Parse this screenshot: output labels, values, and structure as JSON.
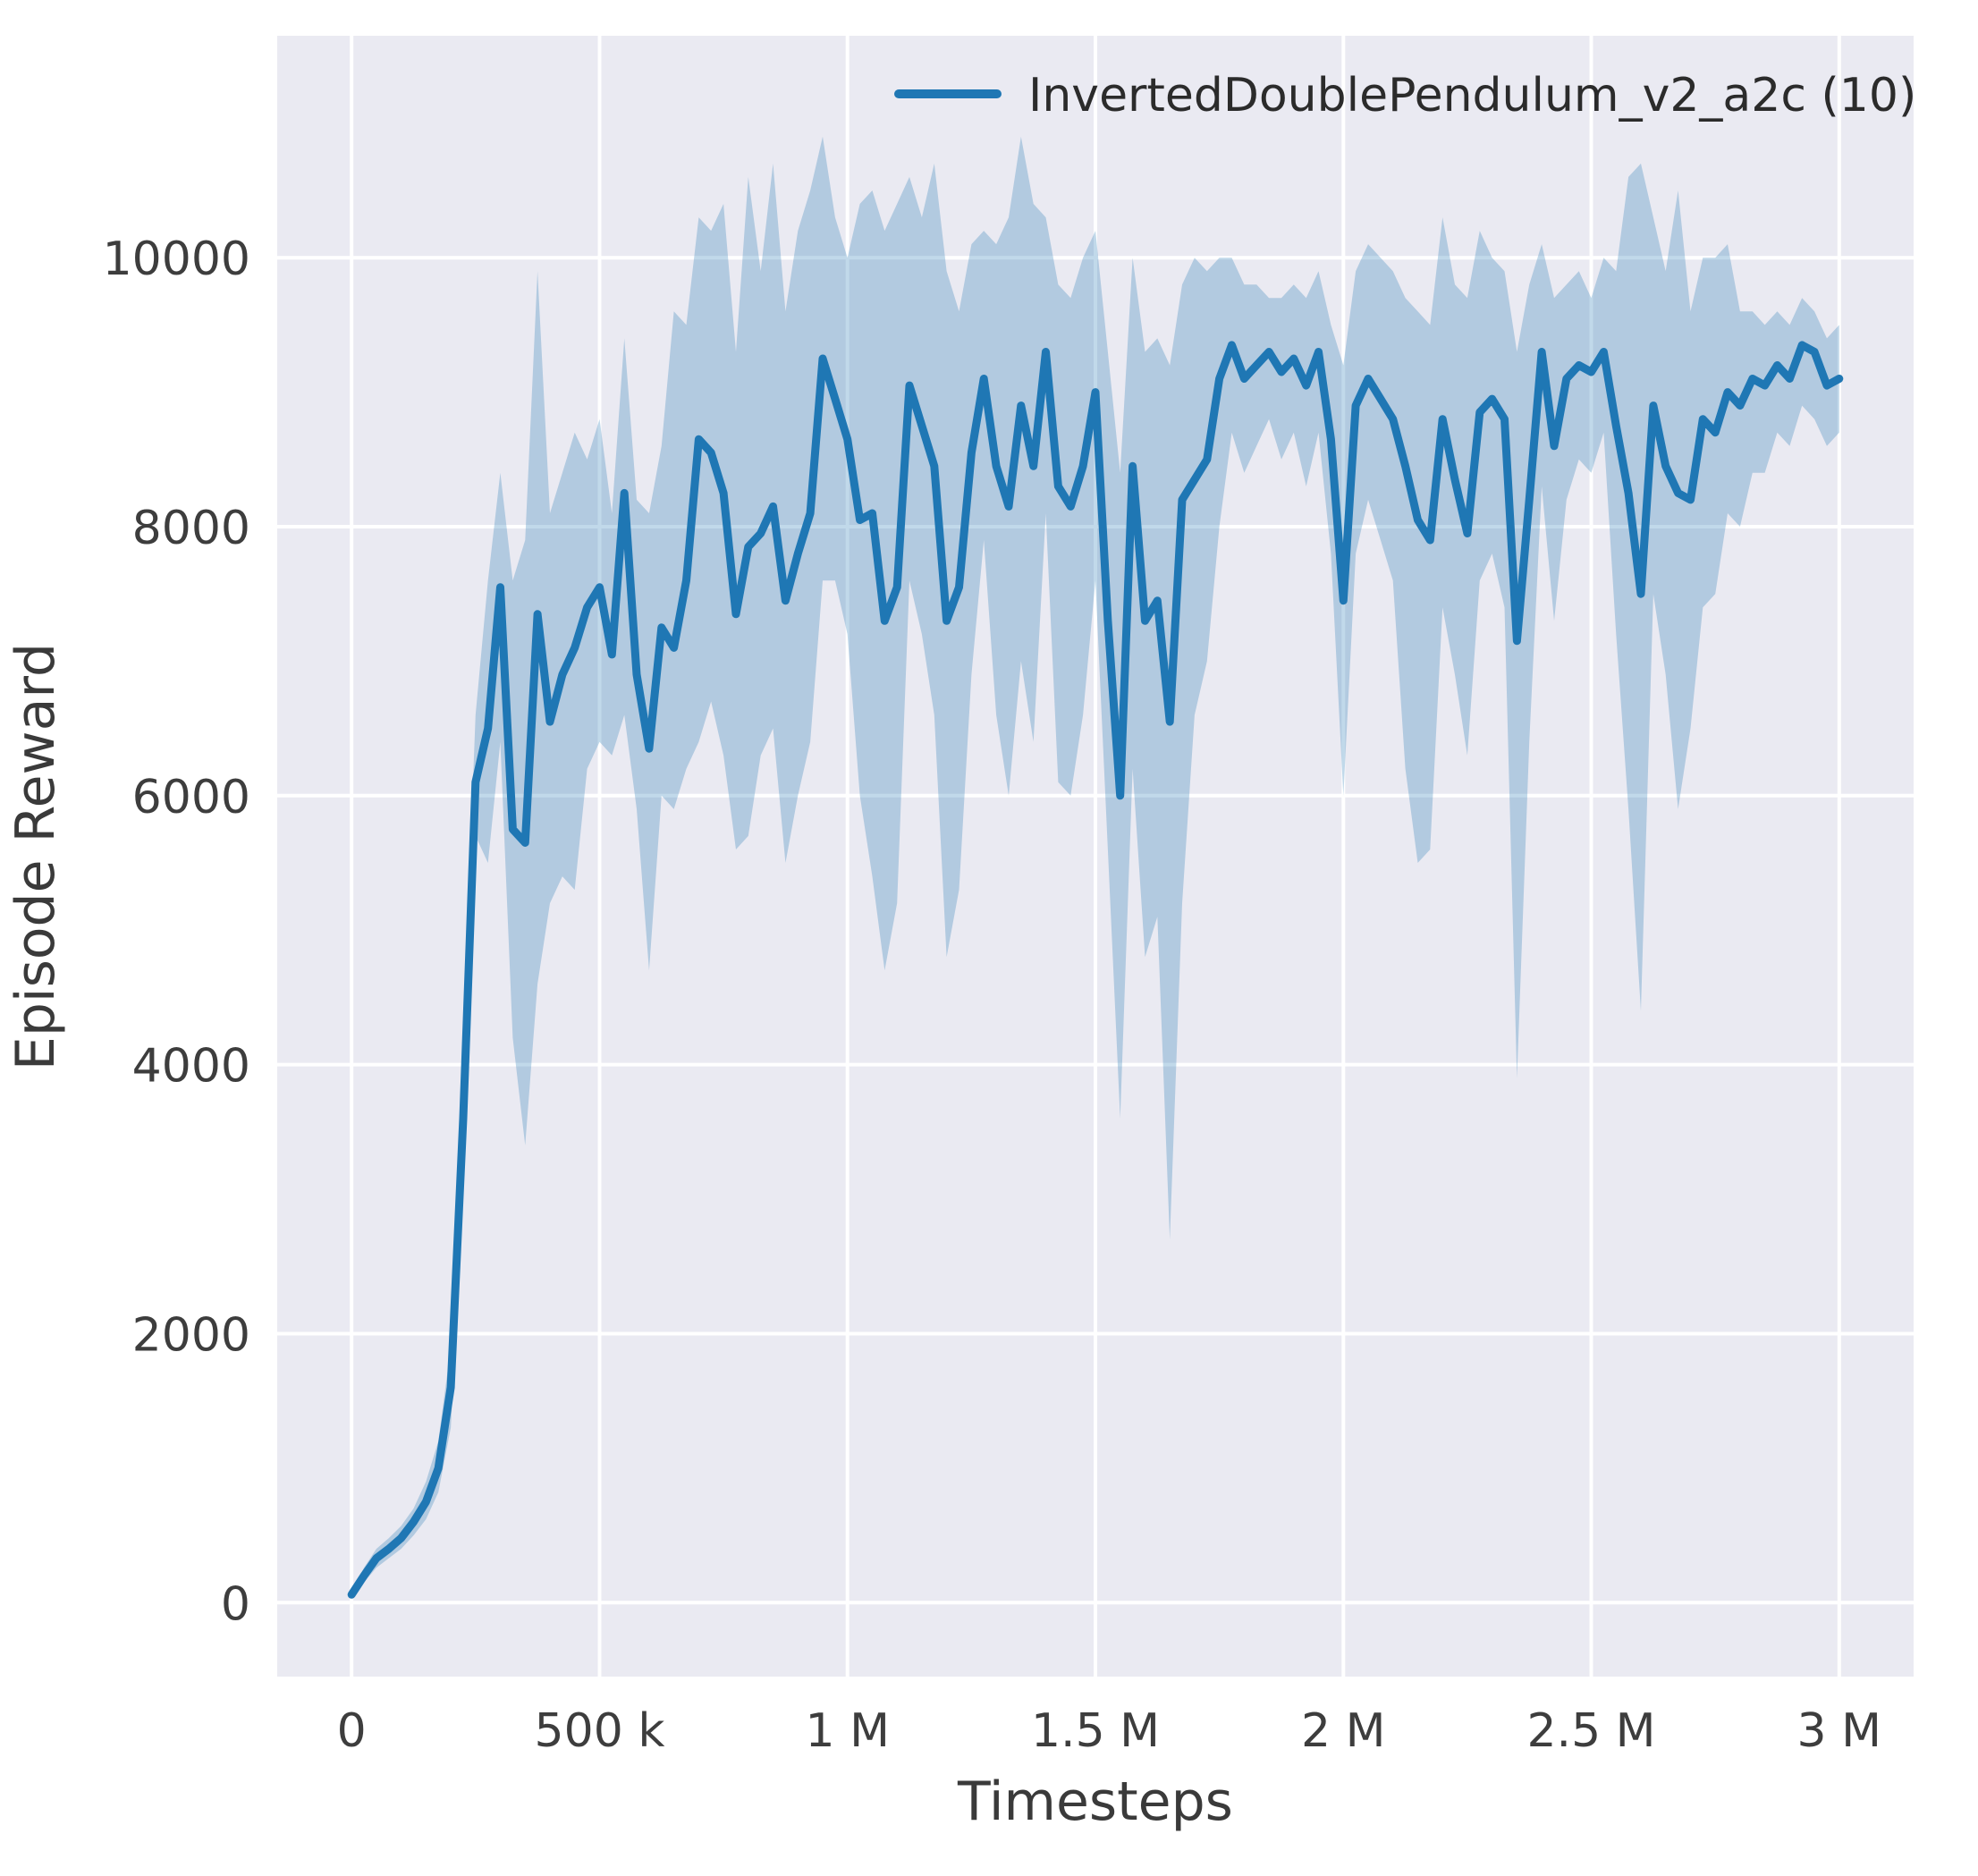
{
  "figure": {
    "background": "#ffffff"
  },
  "chart_data": {
    "type": "line",
    "title": "",
    "xlabel": "Timesteps",
    "ylabel": "Episode Reward",
    "legend_position": "upper right",
    "grid": true,
    "axes_background": "#eaeaf2",
    "grid_color": "#ffffff",
    "line_color": "#1f77b4",
    "band_color": "#1f77b4",
    "band_opacity": 0.28,
    "text_color": "#3d3d3d",
    "xlim": [
      -150000,
      3150000
    ],
    "ylim": [
      -550,
      11650
    ],
    "x_ticks": [
      {
        "value": 0,
        "label": "0"
      },
      {
        "value": 500000,
        "label": "500 k"
      },
      {
        "value": 1000000,
        "label": "1 M"
      },
      {
        "value": 1500000,
        "label": "1.5 M"
      },
      {
        "value": 2000000,
        "label": "2 M"
      },
      {
        "value": 2500000,
        "label": "2.5 M"
      },
      {
        "value": 3000000,
        "label": "3 M"
      }
    ],
    "y_ticks": [
      {
        "value": 0,
        "label": "0"
      },
      {
        "value": 2000,
        "label": "2000"
      },
      {
        "value": 4000,
        "label": "4000"
      },
      {
        "value": 6000,
        "label": "6000"
      },
      {
        "value": 8000,
        "label": "8000"
      },
      {
        "value": 10000,
        "label": "10000"
      }
    ],
    "series": [
      {
        "name": "InvertedDoublePendulum_v2_a2c (10)",
        "x": [
          0,
          25000,
          50000,
          75000,
          100000,
          125000,
          150000,
          175000,
          200000,
          225000,
          250000,
          275000,
          300000,
          325000,
          350000,
          375000,
          400000,
          425000,
          450000,
          475000,
          500000,
          525000,
          550000,
          575000,
          600000,
          625000,
          650000,
          675000,
          700000,
          725000,
          750000,
          775000,
          800000,
          825000,
          850000,
          875000,
          900000,
          925000,
          950000,
          975000,
          1000000,
          1025000,
          1050000,
          1075000,
          1100000,
          1125000,
          1150000,
          1175000,
          1200000,
          1225000,
          1250000,
          1275000,
          1300000,
          1325000,
          1350000,
          1375000,
          1400000,
          1425000,
          1450000,
          1475000,
          1500000,
          1525000,
          1550000,
          1575000,
          1600000,
          1625000,
          1650000,
          1675000,
          1700000,
          1725000,
          1750000,
          1775000,
          1800000,
          1825000,
          1850000,
          1875000,
          1900000,
          1925000,
          1950000,
          1975000,
          2000000,
          2025000,
          2050000,
          2075000,
          2100000,
          2125000,
          2150000,
          2175000,
          2200000,
          2225000,
          2250000,
          2275000,
          2300000,
          2325000,
          2350000,
          2375000,
          2400000,
          2425000,
          2450000,
          2475000,
          2500000,
          2525000,
          2550000,
          2575000,
          2600000,
          2625000,
          2650000,
          2675000,
          2700000,
          2725000,
          2750000,
          2775000,
          2800000,
          2825000,
          2850000,
          2875000,
          2900000,
          2925000,
          2950000,
          2975000,
          3000000
        ],
        "mean": [
          60,
          200,
          330,
          400,
          480,
          600,
          750,
          1000,
          1600,
          3600,
          6100,
          6500,
          7550,
          5750,
          5650,
          7350,
          6550,
          6900,
          7100,
          7400,
          7550,
          7050,
          8250,
          6900,
          6350,
          7250,
          7100,
          7600,
          8650,
          8550,
          8250,
          7350,
          7850,
          7950,
          8150,
          7450,
          7800,
          8100,
          9250,
          8950,
          8650,
          8050,
          8100,
          7300,
          7550,
          9050,
          8750,
          8450,
          7300,
          7550,
          8550,
          9100,
          8450,
          8150,
          8900,
          8450,
          9300,
          8300,
          8150,
          8450,
          9000,
          7300,
          6000,
          8450,
          7300,
          7450,
          6550,
          8200,
          8350,
          8500,
          9100,
          9350,
          9100,
          9200,
          9300,
          9150,
          9250,
          9050,
          9300,
          8650,
          7450,
          8900,
          9100,
          8950,
          8800,
          8450,
          8050,
          7900,
          8800,
          8350,
          7950,
          8850,
          8950,
          8800,
          7150,
          8200,
          9300,
          8600,
          9100,
          9200,
          9150,
          9300,
          8750,
          8250,
          7500,
          8900,
          8450,
          8250,
          8200,
          8800,
          8700,
          9000,
          8900,
          9100,
          9050,
          9200,
          9100,
          9350,
          9300,
          9050,
          9100
        ],
        "band_low": [
          30,
          150,
          260,
          330,
          400,
          500,
          620,
          820,
          1300,
          3000,
          5700,
          5500,
          6400,
          4200,
          3400,
          4600,
          5200,
          5400,
          5300,
          6200,
          6400,
          6300,
          6600,
          5900,
          4700,
          6000,
          5900,
          6200,
          6400,
          6700,
          6300,
          5600,
          5700,
          6300,
          6500,
          5500,
          6000,
          6400,
          7600,
          7600,
          7200,
          6000,
          5400,
          4700,
          5200,
          7600,
          7200,
          6600,
          4800,
          5300,
          6900,
          7900,
          6600,
          6000,
          7000,
          6400,
          8100,
          6100,
          6000,
          6600,
          7600,
          5600,
          3600,
          6200,
          4800,
          5100,
          2700,
          5200,
          6600,
          7000,
          8000,
          8700,
          8400,
          8600,
          8800,
          8500,
          8700,
          8300,
          8700,
          7800,
          6000,
          7800,
          8200,
          7900,
          7600,
          6200,
          5500,
          5600,
          7400,
          6900,
          6300,
          7600,
          7800,
          7400,
          3900,
          6400,
          8300,
          7300,
          8200,
          8500,
          8400,
          8700,
          7200,
          5900,
          4400,
          7500,
          6900,
          5900,
          6500,
          7400,
          7500,
          8100,
          8000,
          8400,
          8400,
          8700,
          8600,
          8900,
          8800,
          8600,
          8700
        ],
        "band_high": [
          90,
          260,
          400,
          480,
          570,
          700,
          900,
          1200,
          1900,
          4200,
          6600,
          7600,
          8400,
          7600,
          7900,
          9900,
          8100,
          8400,
          8700,
          8500,
          8800,
          8100,
          9400,
          8200,
          8100,
          8600,
          9600,
          9500,
          10300,
          10200,
          10400,
          9300,
          10600,
          9900,
          10700,
          9600,
          10200,
          10500,
          10900,
          10300,
          10000,
          10400,
          10500,
          10200,
          10400,
          10600,
          10300,
          10700,
          9900,
          9600,
          10100,
          10200,
          10100,
          10300,
          10900,
          10400,
          10300,
          9800,
          9700,
          10000,
          10200,
          9300,
          8400,
          10000,
          9300,
          9400,
          9200,
          9800,
          10000,
          9900,
          10000,
          10000,
          9800,
          9800,
          9700,
          9700,
          9800,
          9700,
          9900,
          9500,
          9200,
          9900,
          10100,
          10000,
          9900,
          9700,
          9600,
          9500,
          10300,
          9800,
          9700,
          10200,
          10000,
          9900,
          9300,
          9800,
          10100,
          9700,
          9800,
          9900,
          9700,
          10000,
          9900,
          10600,
          10700,
          10300,
          9900,
          10500,
          9600,
          10000,
          10000,
          10100,
          9600,
          9600,
          9500,
          9600,
          9500,
          9700,
          9600,
          9400,
          9500
        ]
      }
    ]
  }
}
